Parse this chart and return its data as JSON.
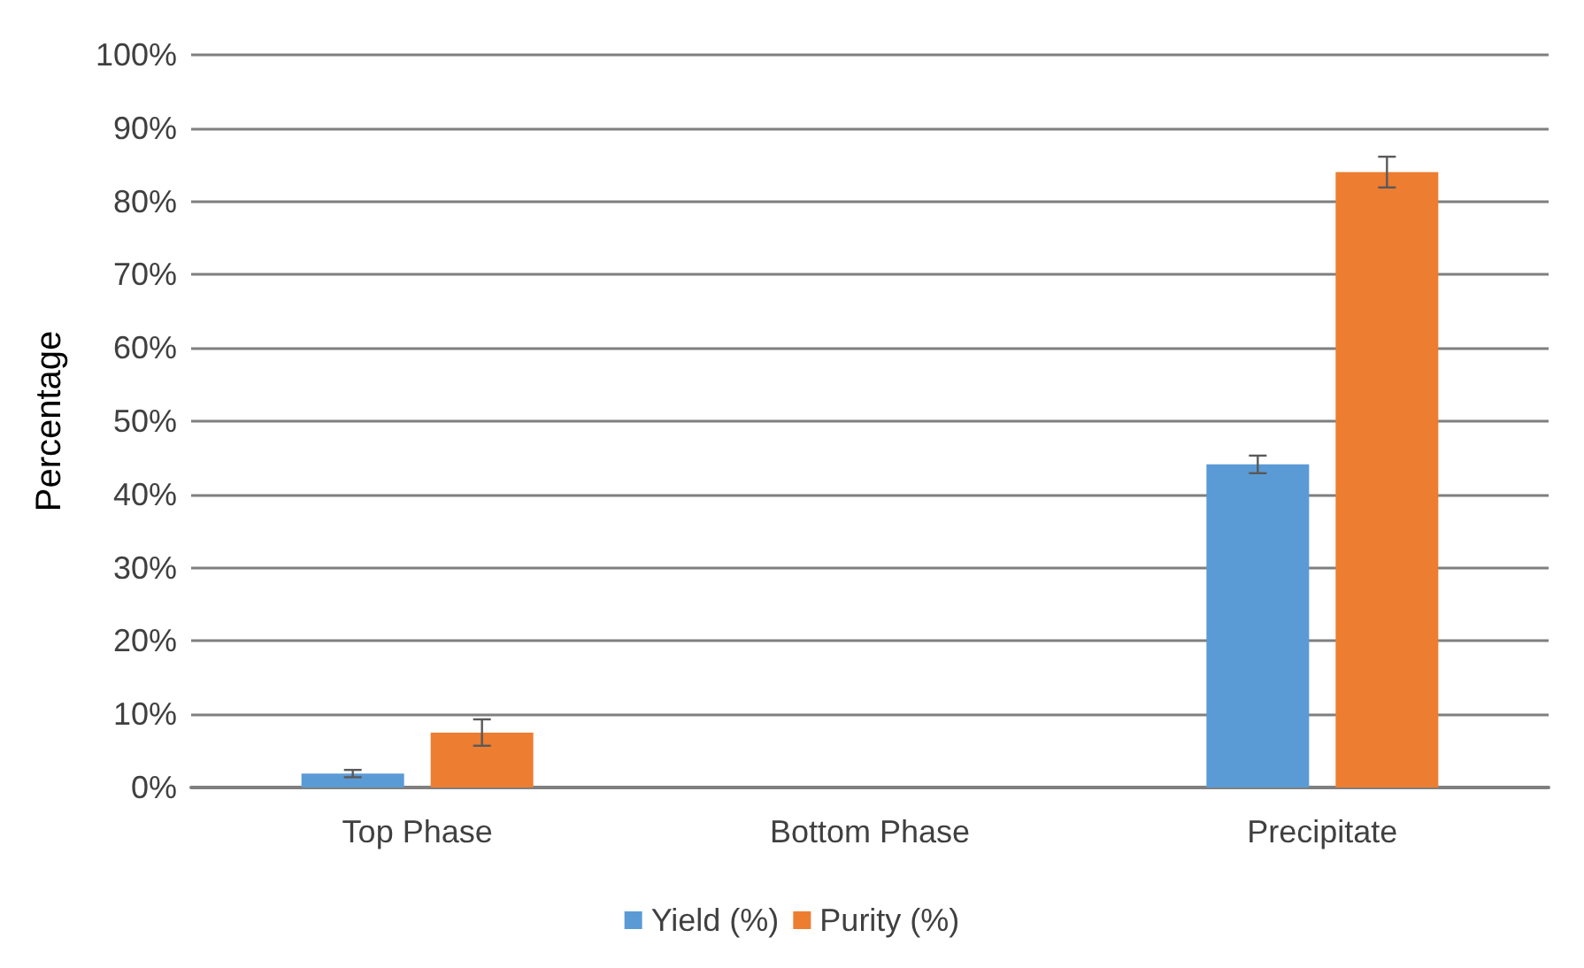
{
  "chart_data": {
    "type": "bar",
    "ylabel": "Percentage",
    "categories": [
      "Top Phase",
      "Bottom Phase",
      "Precipitate"
    ],
    "series": [
      {
        "name": "Yield (%)",
        "color": "#5b9bd5",
        "values": [
          1.9,
          0,
          44.1
        ],
        "errors": [
          0.5,
          null,
          1.2
        ]
      },
      {
        "name": "Purity (%)",
        "color": "#ed7d31",
        "values": [
          7.5,
          0,
          84.0
        ],
        "errors": [
          1.8,
          null,
          2.1
        ]
      }
    ],
    "ylim": [
      0,
      100
    ],
    "yticks": [
      {
        "value": 0,
        "label": "0%"
      },
      {
        "value": 10,
        "label": "10%"
      },
      {
        "value": 20,
        "label": "20%"
      },
      {
        "value": 30,
        "label": "30%"
      },
      {
        "value": 40,
        "label": "40%"
      },
      {
        "value": 50,
        "label": "50%"
      },
      {
        "value": 60,
        "label": "60%"
      },
      {
        "value": 70,
        "label": "70%"
      },
      {
        "value": 80,
        "label": "80%"
      },
      {
        "value": 90,
        "label": "90%"
      },
      {
        "value": 100,
        "label": "100%"
      }
    ],
    "grid": "y",
    "legend": "bottom"
  }
}
